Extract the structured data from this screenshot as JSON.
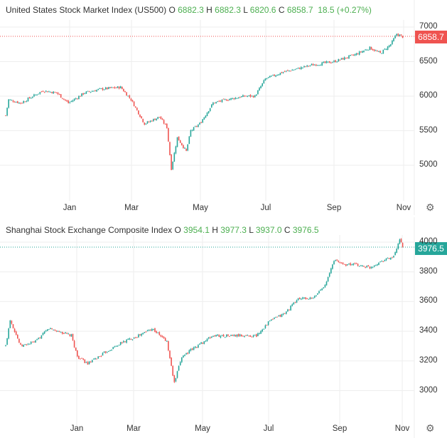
{
  "chart_data": [
    {
      "type": "candlestick",
      "title": "United States Stock Market Index (US500)",
      "ohlc": {
        "O": "6882.3",
        "H": "6882.3",
        "L": "6820.6",
        "C": "6858.7",
        "change": "18.5 (+0.27%)"
      },
      "last_price": "6858.7",
      "last_color": "#ef5350",
      "yticks": [
        "7000",
        "6500",
        "6000",
        "5500",
        "5000"
      ],
      "ylim": [
        4500,
        7100
      ],
      "xticks": [
        "Jan",
        "Mar",
        "May",
        "Jul",
        "Sep",
        "Nov"
      ],
      "keypoints": [
        [
          0,
          5720
        ],
        [
          2,
          5950
        ],
        [
          10,
          5900
        ],
        [
          25,
          6080
        ],
        [
          34,
          6050
        ],
        [
          42,
          5900
        ],
        [
          53,
          6050
        ],
        [
          63,
          6100
        ],
        [
          77,
          6130
        ],
        [
          84,
          5950
        ],
        [
          93,
          5600
        ],
        [
          103,
          5700
        ],
        [
          108,
          5550
        ],
        [
          111,
          4950
        ],
        [
          115,
          5400
        ],
        [
          121,
          5200
        ],
        [
          124,
          5500
        ],
        [
          130,
          5600
        ],
        [
          139,
          5900
        ],
        [
          148,
          5950
        ],
        [
          160,
          6000
        ],
        [
          167,
          6000
        ],
        [
          174,
          6250
        ],
        [
          186,
          6350
        ],
        [
          196,
          6400
        ],
        [
          205,
          6450
        ],
        [
          220,
          6500
        ],
        [
          234,
          6600
        ],
        [
          244,
          6700
        ],
        [
          251,
          6620
        ],
        [
          258,
          6750
        ],
        [
          262,
          6900
        ],
        [
          266,
          6859
        ]
      ]
    },
    {
      "type": "candlestick",
      "title": "Shanghai Stock Exchange Composite Index",
      "ohlc": {
        "O": "3954.1",
        "H": "3977.3",
        "L": "3937.0",
        "C": "3976.5"
      },
      "last_price": "3976.5",
      "last_color": "#26a69a",
      "yticks": [
        "4000",
        "3800",
        "3600",
        "3400",
        "3200",
        "3000"
      ],
      "ylim": [
        2800,
        4060
      ],
      "xticks": [
        "Jan",
        "Mar",
        "May",
        "Jul",
        "Sep",
        "Nov"
      ],
      "keypoints": [
        [
          0,
          3300
        ],
        [
          3,
          3480
        ],
        [
          10,
          3300
        ],
        [
          20,
          3330
        ],
        [
          29,
          3420
        ],
        [
          44,
          3370
        ],
        [
          48,
          3230
        ],
        [
          55,
          3180
        ],
        [
          67,
          3260
        ],
        [
          79,
          3330
        ],
        [
          91,
          3380
        ],
        [
          98,
          3420
        ],
        [
          108,
          3330
        ],
        [
          113,
          3050
        ],
        [
          118,
          3230
        ],
        [
          128,
          3300
        ],
        [
          139,
          3370
        ],
        [
          158,
          3370
        ],
        [
          168,
          3370
        ],
        [
          177,
          3470
        ],
        [
          187,
          3520
        ],
        [
          196,
          3620
        ],
        [
          206,
          3620
        ],
        [
          215,
          3730
        ],
        [
          220,
          3880
        ],
        [
          227,
          3850
        ],
        [
          234,
          3850
        ],
        [
          244,
          3830
        ],
        [
          253,
          3880
        ],
        [
          260,
          3900
        ],
        [
          264,
          4010
        ],
        [
          266,
          3976
        ]
      ]
    }
  ]
}
